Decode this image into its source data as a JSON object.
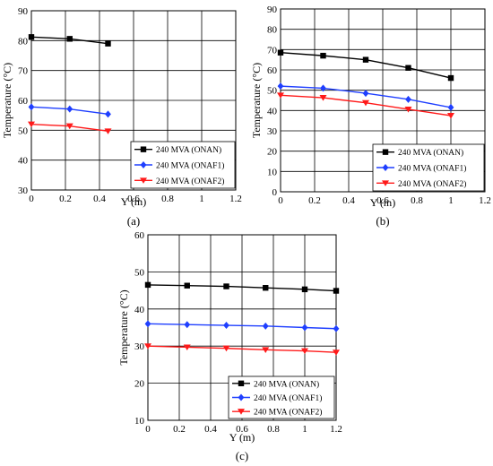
{
  "chart_data": [
    {
      "type": "line",
      "panel_label": "(a)",
      "xlabel": "Y (m)",
      "ylabel": "Temperature (°C)",
      "xlim": [
        0,
        1.2
      ],
      "ylim": [
        30,
        90
      ],
      "xticks": [
        "0",
        "0.2",
        "0.4",
        "0.6",
        "0.8",
        "1",
        "1.2"
      ],
      "yticks": [
        "30",
        "40",
        "50",
        "60",
        "70",
        "80",
        "90"
      ],
      "grid": true,
      "legend_position": "bottom-right",
      "series": [
        {
          "name": "240 MVA (ONAN)",
          "color": "#000000",
          "marker": "square",
          "x": [
            0,
            0.225,
            0.45
          ],
          "y": [
            81.2,
            80.6,
            79.0
          ]
        },
        {
          "name": "240 MVA (ONAF1)",
          "color": "#1f3fff",
          "marker": "diamond",
          "x": [
            0,
            0.225,
            0.45
          ],
          "y": [
            57.8,
            57.1,
            55.4
          ]
        },
        {
          "name": "240 MVA (ONAF2)",
          "color": "#ff1a1a",
          "marker": "triangle-down",
          "x": [
            0,
            0.225,
            0.45
          ],
          "y": [
            52.0,
            51.4,
            49.7
          ]
        }
      ]
    },
    {
      "type": "line",
      "panel_label": "(b)",
      "xlabel": "Y (m)",
      "ylabel": "Temperature (°C)",
      "xlim": [
        0,
        1.2
      ],
      "ylim": [
        0,
        90
      ],
      "xticks": [
        "0",
        "0.2",
        "0.4",
        "0.6",
        "0.8",
        "1",
        "1.2"
      ],
      "yticks": [
        "0",
        "10",
        "20",
        "30",
        "40",
        "50",
        "60",
        "70",
        "80",
        "90"
      ],
      "grid": true,
      "legend_position": "bottom-right",
      "series": [
        {
          "name": "240 MVA (ONAN)",
          "color": "#000000",
          "marker": "square",
          "x": [
            0,
            0.25,
            0.5,
            0.75,
            1.0
          ],
          "y": [
            68.5,
            67.0,
            65.0,
            61.0,
            56.0
          ]
        },
        {
          "name": "240 MVA (ONAF1)",
          "color": "#1f3fff",
          "marker": "diamond",
          "x": [
            0,
            0.25,
            0.5,
            0.75,
            1.0
          ],
          "y": [
            52.0,
            51.0,
            48.5,
            45.5,
            41.5
          ]
        },
        {
          "name": "240 MVA (ONAF2)",
          "color": "#ff1a1a",
          "marker": "triangle-down",
          "x": [
            0,
            0.25,
            0.5,
            0.75,
            1.0
          ],
          "y": [
            47.5,
            46.3,
            43.8,
            40.6,
            37.5
          ]
        }
      ]
    },
    {
      "type": "line",
      "panel_label": "(c)",
      "xlabel": "Y (m)",
      "ylabel": "Temperature (°C)",
      "xlim": [
        0,
        1.2
      ],
      "ylim": [
        10,
        60
      ],
      "xticks": [
        "0",
        "0.2",
        "0.4",
        "0.6",
        "0.8",
        "1",
        "1.2"
      ],
      "yticks": [
        "10",
        "20",
        "30",
        "40",
        "50",
        "60"
      ],
      "grid": true,
      "legend_position": "bottom-right",
      "series": [
        {
          "name": "240 MVA (ONAN)",
          "color": "#000000",
          "marker": "square",
          "x": [
            0,
            0.25,
            0.5,
            0.75,
            1.0,
            1.2
          ],
          "y": [
            46.5,
            46.3,
            46.1,
            45.7,
            45.3,
            44.9
          ]
        },
        {
          "name": "240 MVA (ONAF1)",
          "color": "#1f3fff",
          "marker": "diamond",
          "x": [
            0,
            0.25,
            0.5,
            0.75,
            1.0,
            1.2
          ],
          "y": [
            36.0,
            35.8,
            35.6,
            35.4,
            35.0,
            34.7
          ]
        },
        {
          "name": "240 MVA (ONAF2)",
          "color": "#ff1a1a",
          "marker": "triangle-down",
          "x": [
            0,
            0.25,
            0.5,
            0.75,
            1.0,
            1.2
          ],
          "y": [
            30.0,
            29.7,
            29.4,
            29.0,
            28.7,
            28.3
          ]
        }
      ]
    }
  ]
}
